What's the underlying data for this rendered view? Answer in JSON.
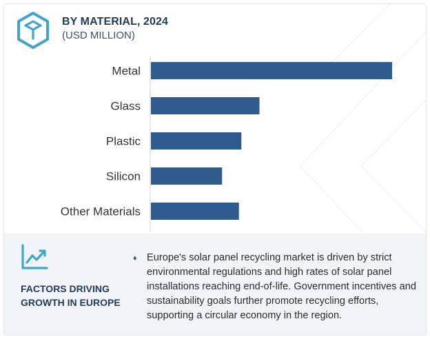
{
  "header": {
    "title": "BY MATERIAL, 2024",
    "subtitle": "(USD MILLION)",
    "logo_icon": "cube-icon"
  },
  "chart_data": {
    "type": "bar",
    "orientation": "horizontal",
    "categories": [
      "Metal",
      "Glass",
      "Plastic",
      "Silicon",
      "Other Materials"
    ],
    "values": [
      100,
      45,
      37.5,
      29.5,
      36.5
    ],
    "value_scale": "relative (no axis ticks shown)",
    "xlabel": "",
    "ylabel": "",
    "grid": false,
    "bar_color": "#2f5b8f"
  },
  "factors": {
    "icon": "line-chart-icon",
    "title_line1": "FACTORS DRIVING",
    "title_line2": "GROWTH IN EUROPE",
    "bullet_icon": "diamond-bullet-icon",
    "text": "Europe's solar panel recycling market is driven by strict environmental regulations and high rates of solar panel installations reaching end-of-life. Government incentives and sustainability goals further promote recycling efforts, supporting a circular economy in the region."
  },
  "colors": {
    "accent": "#2f5b8f",
    "icon_teal": "#3fa6c9",
    "title": "#1f3b5c",
    "panel_bg": "#f1f4f8"
  }
}
